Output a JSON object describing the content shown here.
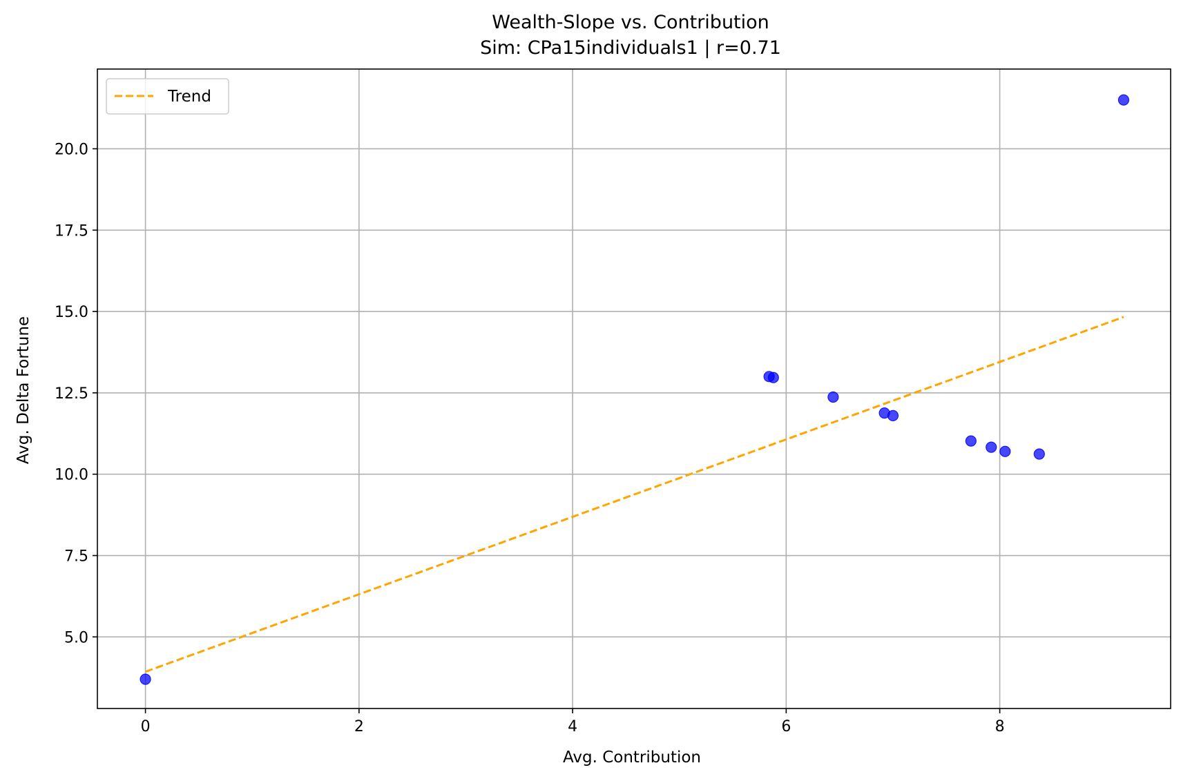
{
  "chart_data": {
    "type": "scatter",
    "title": "Wealth-Slope vs. Contribution",
    "subtitle": "Sim: CPa15individuals1 | r=0.71",
    "xlabel": "Avg. Contribution",
    "ylabel": "Avg. Delta Fortune",
    "xlim": [
      -0.45,
      9.6
    ],
    "ylim": [
      2.8,
      22.45
    ],
    "x_ticks": [
      0,
      2,
      4,
      6,
      8
    ],
    "x_tick_labels": [
      "0",
      "2",
      "4",
      "6",
      "8"
    ],
    "y_ticks": [
      5.0,
      7.5,
      10.0,
      12.5,
      15.0,
      17.5,
      20.0
    ],
    "y_tick_labels": [
      "5.0",
      "7.5",
      "10.0",
      "12.5",
      "15.0",
      "17.5",
      "20.0"
    ],
    "grid": true,
    "legend_position": "top-left",
    "points": [
      {
        "x": 0.0,
        "y": 3.7
      },
      {
        "x": 5.84,
        "y": 13.0
      },
      {
        "x": 5.88,
        "y": 12.97
      },
      {
        "x": 6.44,
        "y": 12.37
      },
      {
        "x": 6.92,
        "y": 11.88
      },
      {
        "x": 7.0,
        "y": 11.8
      },
      {
        "x": 7.73,
        "y": 11.02
      },
      {
        "x": 7.92,
        "y": 10.83
      },
      {
        "x": 8.05,
        "y": 10.7
      },
      {
        "x": 8.37,
        "y": 10.62
      },
      {
        "x": 9.16,
        "y": 21.5
      }
    ],
    "series": [
      {
        "name": "Trend",
        "kind": "line",
        "style": "dashed",
        "x": [
          0.0,
          9.16
        ],
        "y": [
          3.93,
          14.83
        ]
      }
    ],
    "colors": {
      "points": "#0000ff",
      "trend": "#ffa500",
      "grid": "#b0b0b0"
    }
  }
}
